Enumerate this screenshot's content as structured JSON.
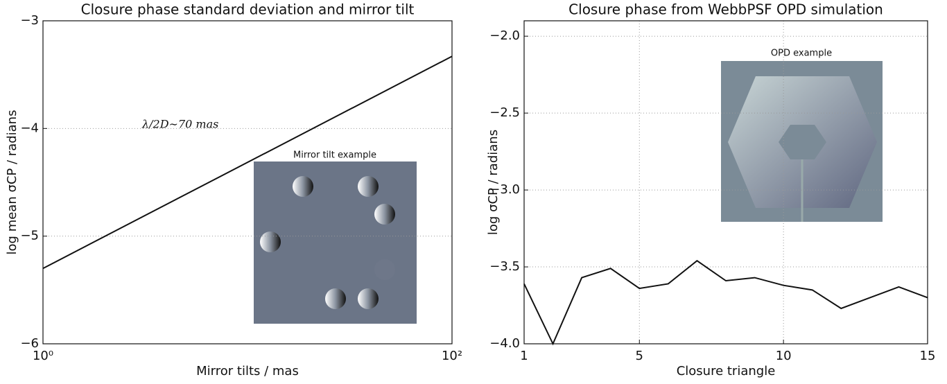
{
  "chart_data": [
    {
      "type": "line",
      "title": "Closure phase standard deviation and mirror tilt",
      "x_label": "Mirror tilts / mas",
      "y_label": "log mean σCP / radians",
      "xlog": true,
      "grid": true,
      "x": [
        1,
        100
      ],
      "series": [
        {
          "color": "#111111",
          "values": [
            -5.3,
            -3.33
          ]
        }
      ],
      "xlim": [
        1,
        100
      ],
      "xticks": [
        {
          "value": 1,
          "label": "10⁰"
        },
        {
          "value": 100,
          "label": "10²"
        }
      ],
      "ylim": [
        -6,
        -3
      ],
      "yticks": [
        {
          "value": -6,
          "label": "−6"
        },
        {
          "value": -5,
          "label": "−5"
        },
        {
          "value": -4,
          "label": "−4"
        },
        {
          "value": -3,
          "label": "−3"
        }
      ],
      "annotations": [
        "λ/2D∼70 mas",
        "Mirror tilt example"
      ]
    },
    {
      "type": "line",
      "title": "Closure phase from WebbPSF OPD simulation",
      "x_label": "Closure triangle",
      "y_label": "log σCP / radians",
      "xlog": false,
      "grid": true,
      "x": [
        1,
        2,
        3,
        4,
        5,
        6,
        7,
        8,
        9,
        10,
        11,
        12,
        13,
        14,
        15
      ],
      "series": [
        {
          "color": "#111111",
          "values": [
            -3.61,
            -4.0,
            -3.57,
            -3.51,
            -3.64,
            -3.61,
            -3.46,
            -3.59,
            -3.57,
            -3.62,
            -3.65,
            -3.77,
            -3.7,
            -3.63,
            -3.7
          ]
        }
      ],
      "xlim": [
        1,
        15
      ],
      "xticks": [
        1,
        5,
        10,
        15
      ],
      "ylim": [
        -4.0,
        -1.9
      ],
      "yticks": [
        {
          "value": -4.0,
          "label": "−4.0"
        },
        {
          "value": -3.5,
          "label": "−3.5"
        },
        {
          "value": -3.0,
          "label": "−3.0"
        },
        {
          "value": -2.5,
          "label": "−2.5"
        },
        {
          "value": -2.0,
          "label": "−2.0"
        }
      ],
      "annotations": [
        "OPD example"
      ]
    }
  ]
}
